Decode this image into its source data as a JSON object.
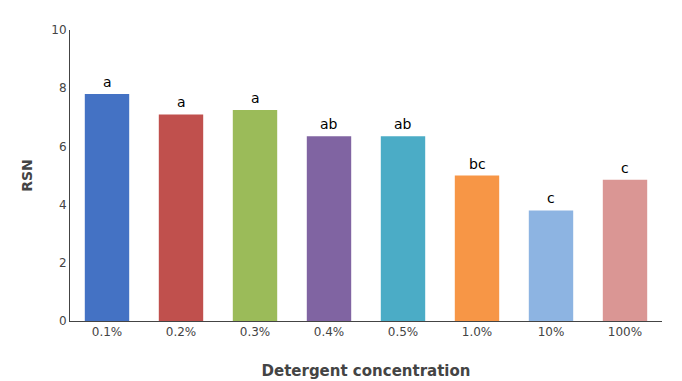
{
  "chart_data": {
    "type": "bar",
    "categories": [
      "0.1%",
      "0.2%",
      "0.3%",
      "0.4%",
      "0.5%",
      "1.0%",
      "10%",
      "100%"
    ],
    "values": [
      7.8,
      7.1,
      7.25,
      6.35,
      6.35,
      5.0,
      3.8,
      4.85
    ],
    "colors": [
      "#4472C4",
      "#C0504D",
      "#9BBB59",
      "#8064A2",
      "#4BACC6",
      "#F79646",
      "#8DB4E2",
      "#DA9694"
    ],
    "annotations": [
      "a",
      "a",
      "a",
      "ab",
      "ab",
      "bc",
      "c",
      "c"
    ],
    "xlabel": "Detergent concentration",
    "ylabel": "RSN",
    "ylim": [
      0,
      10
    ],
    "yticks": [
      0,
      2,
      4,
      6,
      8,
      10
    ],
    "grid": false
  }
}
